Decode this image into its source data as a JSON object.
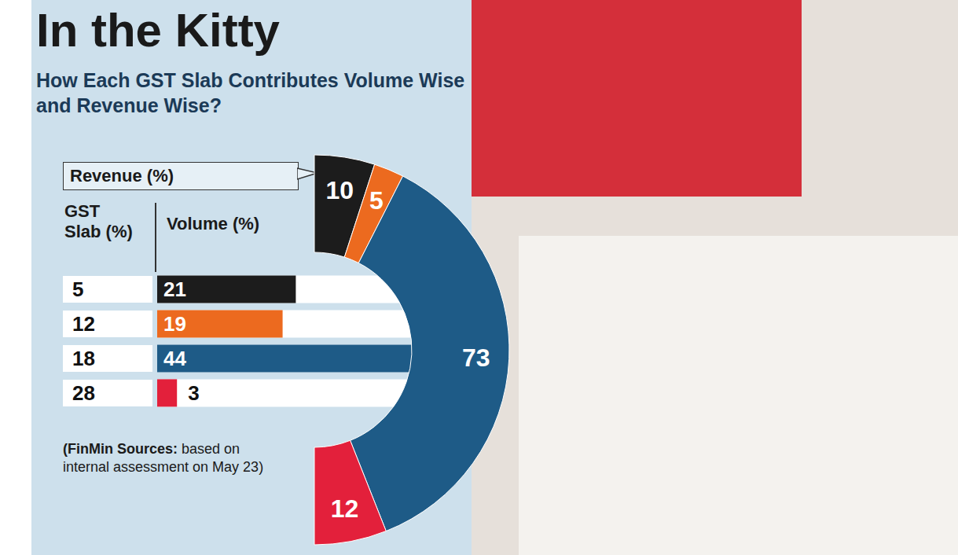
{
  "chart_data": [
    {
      "type": "bar",
      "orientation": "horizontal",
      "title": "In the Kitty",
      "subtitle": "How Each GST Slab Contributes Volume Wise and Revenue Wise?",
      "ylabel": "GST Slab (%)",
      "xlabel": "Volume (%)",
      "categories": [
        5,
        12,
        18,
        28
      ],
      "values": [
        21,
        19,
        44,
        3
      ],
      "colors": [
        "#1c1c1c",
        "#ec6a1f",
        "#1e5b87",
        "#e3203b"
      ],
      "xlim": [
        0,
        50
      ],
      "tick_labels": false,
      "data_labels": true,
      "note": [
        "(FinMin Sources:",
        "based on internal assessment on May 23)"
      ]
    },
    {
      "type": "pie",
      "title": "Revenue (%)",
      "categories": [
        5,
        12,
        18,
        28
      ],
      "values": [
        10,
        5,
        73,
        12
      ],
      "colors": [
        "#1c1c1c",
        "#ec6a1f",
        "#1e5b87",
        "#e3203b"
      ],
      "data_labels": true
    }
  ]
}
